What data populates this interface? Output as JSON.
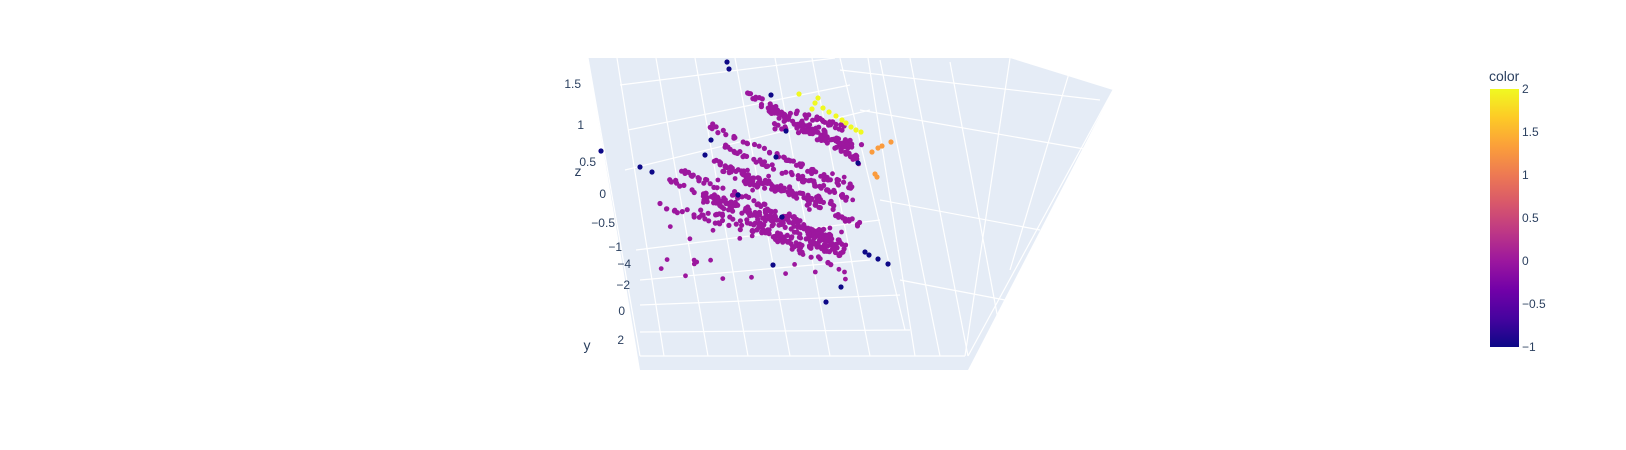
{
  "chart_data": {
    "type": "scatter",
    "title": "",
    "axes": {
      "z": {
        "label": "z",
        "ticks": [
          "1.5",
          "1",
          "0.5",
          "0",
          "−0.5",
          "−1"
        ],
        "range": [
          -1,
          1.8
        ]
      },
      "y": {
        "label": "y",
        "ticks": [
          "−4",
          "−2",
          "0",
          "2"
        ],
        "range": [
          -4.5,
          3
        ]
      },
      "x": {
        "label": "",
        "ticks": []
      }
    },
    "grid": true,
    "colorbar": {
      "title": "color",
      "ticks": [
        "2",
        "1.5",
        "1",
        "0.5",
        "0",
        "−0.5",
        "−1"
      ],
      "range": [
        -1,
        2
      ],
      "colorscale": [
        "#0d0887",
        "#46039f",
        "#7201a8",
        "#9c179e",
        "#bd3786",
        "#d8576b",
        "#ed7953",
        "#fb9f3a",
        "#fdca26",
        "#f0f921"
      ]
    },
    "series": [
      {
        "color_value": 0,
        "approx_count": 900,
        "description_color": "#9c179e"
      },
      {
        "color_value": 2,
        "approx_count": 25
      },
      {
        "color_value": 1.3,
        "approx_count": 6
      },
      {
        "color_value": -1,
        "approx_count": 20
      }
    ]
  }
}
